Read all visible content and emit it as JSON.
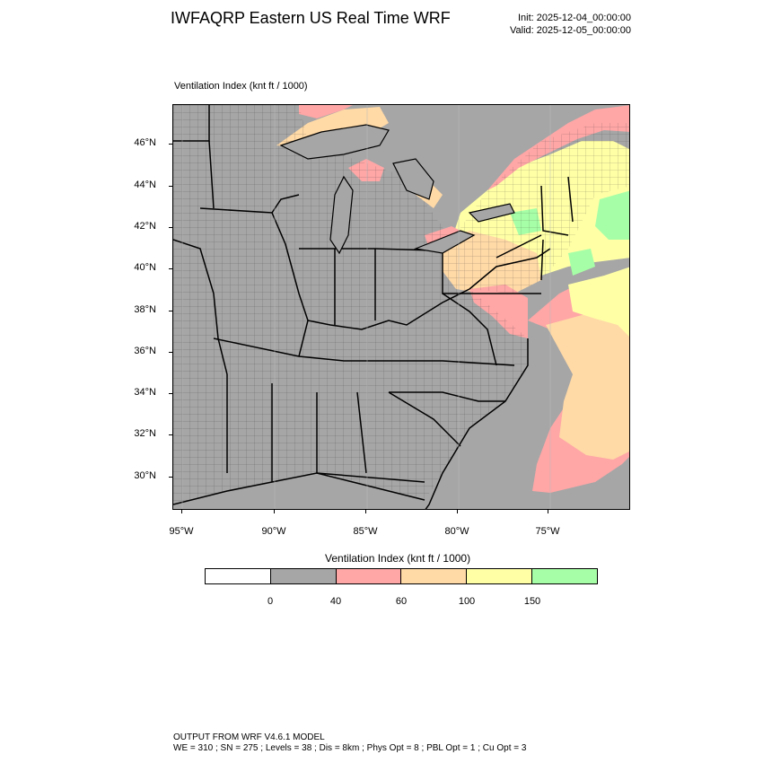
{
  "header": {
    "title": "IWFAQRP Eastern US Real Time WRF",
    "init": "Init: 2025-12-04_00:00:00",
    "valid": "Valid: 2025-12-05_00:00:00"
  },
  "map": {
    "subtitle": "Ventilation Index   (knt ft / 1000)",
    "lat_labels": [
      "46°N",
      "44°N",
      "42°N",
      "40°N",
      "38°N",
      "36°N",
      "34°N",
      "32°N",
      "30°N"
    ],
    "lon_labels": [
      "95°W",
      "90°W",
      "85°W",
      "80°W",
      "75°W"
    ],
    "colors": {
      "gray": "#a6a6a6",
      "red": "#ffa6a6",
      "orange": "#ffd9a6",
      "yellow": "#ffffa6",
      "green": "#a6ffa6",
      "white": "#ffffff"
    }
  },
  "legend": {
    "title": "Ventilation Index  (knt ft / 1000)",
    "colors": [
      "#ffffff",
      "#a6a6a6",
      "#ffa6a6",
      "#ffd9a6",
      "#ffffa6",
      "#a6ffa6"
    ],
    "labels": [
      "0",
      "40",
      "60",
      "100",
      "150"
    ]
  },
  "footer": {
    "line1": "OUTPUT FROM WRF V4.6.1 MODEL",
    "line2": "WE = 310 ; SN = 275 ; Levels = 38 ; Dis = 8km ; Phys Opt = 8 ; PBL Opt = 1 ; Cu Opt = 3"
  }
}
